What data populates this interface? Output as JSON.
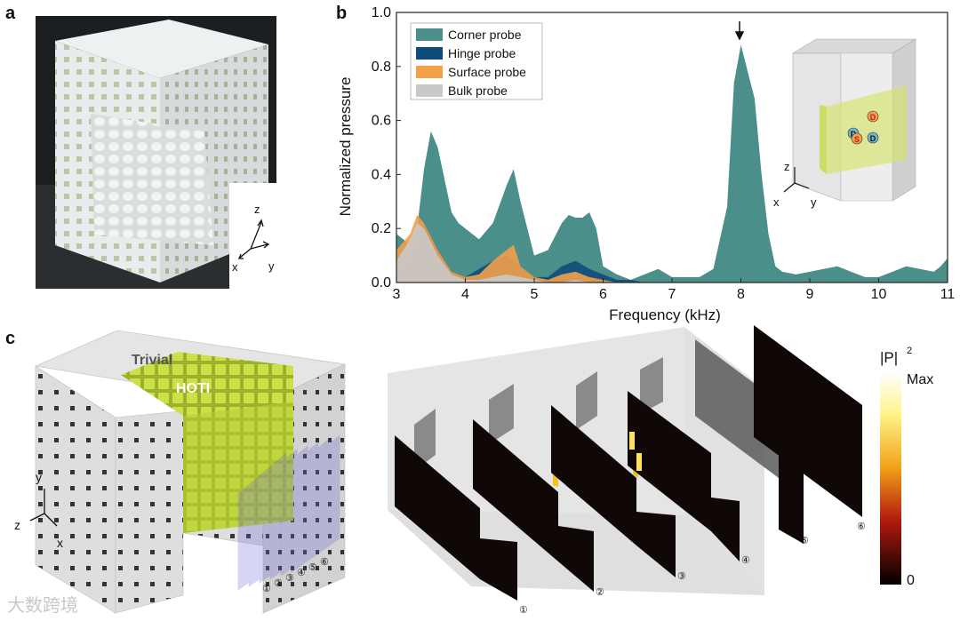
{
  "panels": {
    "a": "a",
    "b": "b",
    "c": "c"
  },
  "photo": {
    "axes": {
      "z": "z",
      "x": "x",
      "y": "y"
    }
  },
  "chart_data": {
    "type": "area",
    "xlabel": "Frequency (kHz)",
    "ylabel": "Normalized pressure",
    "xlim": [
      3,
      11
    ],
    "ylim": [
      0,
      1.0
    ],
    "xticks": [
      "3",
      "4",
      "5",
      "6",
      "7",
      "8",
      "9",
      "10",
      "11"
    ],
    "yticks": [
      "0.0",
      "0.2",
      "0.4",
      "0.6",
      "0.8",
      "1.0"
    ],
    "legend_position": "top-left",
    "annotation": "arrow at 8 kHz peak",
    "series": [
      {
        "name": "Corner probe",
        "color": "#4a8f8a",
        "x": [
          3.0,
          3.1,
          3.2,
          3.3,
          3.4,
          3.5,
          3.6,
          3.7,
          3.8,
          3.9,
          4.0,
          4.2,
          4.4,
          4.6,
          4.7,
          4.8,
          5.0,
          5.2,
          5.4,
          5.5,
          5.6,
          5.7,
          5.8,
          5.9,
          6.0,
          6.2,
          6.4,
          6.6,
          6.8,
          7.0,
          7.2,
          7.4,
          7.6,
          7.8,
          7.9,
          8.0,
          8.1,
          8.2,
          8.3,
          8.4,
          8.5,
          8.6,
          8.8,
          9.0,
          9.2,
          9.4,
          9.6,
          9.8,
          10.0,
          10.2,
          10.4,
          10.6,
          10.8,
          10.9,
          11.0
        ],
        "y": [
          0.18,
          0.16,
          0.14,
          0.2,
          0.42,
          0.56,
          0.5,
          0.38,
          0.26,
          0.22,
          0.2,
          0.16,
          0.22,
          0.36,
          0.42,
          0.3,
          0.1,
          0.12,
          0.22,
          0.25,
          0.24,
          0.24,
          0.26,
          0.2,
          0.06,
          0.03,
          0.01,
          0.03,
          0.05,
          0.02,
          0.02,
          0.02,
          0.05,
          0.28,
          0.74,
          0.88,
          0.78,
          0.68,
          0.4,
          0.18,
          0.06,
          0.04,
          0.03,
          0.04,
          0.05,
          0.06,
          0.04,
          0.02,
          0.02,
          0.04,
          0.06,
          0.05,
          0.04,
          0.06,
          0.09
        ]
      },
      {
        "name": "Hinge probe",
        "color": "#0e4d7a",
        "x": [
          3.0,
          3.2,
          3.4,
          3.6,
          3.8,
          4.0,
          4.2,
          4.4,
          4.6,
          4.8,
          5.0,
          5.2,
          5.4,
          5.6,
          5.8,
          6.0,
          6.2,
          6.4,
          6.6,
          6.8,
          7.0
        ],
        "y": [
          0.05,
          0.1,
          0.22,
          0.12,
          0.04,
          0.02,
          0.05,
          0.08,
          0.1,
          0.06,
          0.02,
          0.02,
          0.06,
          0.08,
          0.05,
          0.03,
          0.01,
          0.01,
          0.0,
          0.0,
          0.0
        ]
      },
      {
        "name": "Surface probe",
        "color": "#f2a04a",
        "x": [
          3.0,
          3.2,
          3.3,
          3.4,
          3.6,
          3.8,
          4.0,
          4.2,
          4.4,
          4.6,
          4.7,
          4.8,
          5.0,
          5.2,
          5.4,
          5.6,
          5.8,
          6.0,
          6.2,
          6.4,
          6.6
        ],
        "y": [
          0.12,
          0.18,
          0.25,
          0.22,
          0.12,
          0.04,
          0.02,
          0.03,
          0.08,
          0.12,
          0.14,
          0.06,
          0.02,
          0.01,
          0.03,
          0.04,
          0.02,
          0.01,
          0.0,
          0.0,
          0.0
        ]
      },
      {
        "name": "Bulk probe",
        "color": "#c9c9c9",
        "x": [
          3.0,
          3.2,
          3.3,
          3.4,
          3.6,
          3.8,
          4.0,
          4.2,
          4.4,
          4.6,
          4.8,
          5.0,
          5.2,
          5.4,
          5.6,
          5.8,
          6.0
        ],
        "y": [
          0.08,
          0.16,
          0.22,
          0.2,
          0.1,
          0.03,
          0.01,
          0.01,
          0.02,
          0.03,
          0.02,
          0.01,
          0.0,
          0.0,
          0.01,
          0.0,
          0.0
        ]
      }
    ],
    "inset": {
      "labels": [
        "D",
        "D",
        "S",
        "D"
      ],
      "axes": {
        "z": "z",
        "x": "x",
        "y": "y"
      }
    }
  },
  "panel_c": {
    "region_trivial": "Trivial",
    "region_hoti": "HOTI",
    "axes": {
      "y": "y",
      "z": "z",
      "x": "x"
    },
    "slice_numbers": [
      "①",
      "②",
      "③",
      "④",
      "⑤",
      "⑥"
    ],
    "colorbar": {
      "title": "|P|",
      "superscript": "2",
      "max": "Max",
      "min": "0"
    }
  },
  "watermark": "大数跨境"
}
